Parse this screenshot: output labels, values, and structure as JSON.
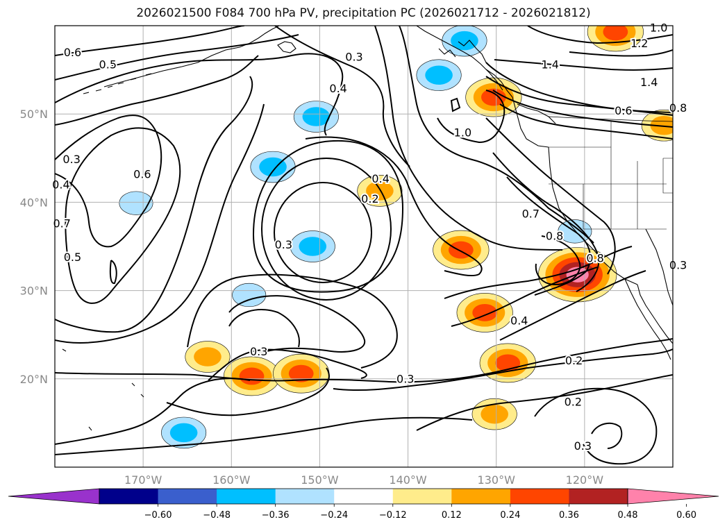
{
  "title": "2026021500 F084 700 hPa PV, precipitation PC (2026021712 - 2026021812)",
  "chart_data": {
    "type": "contour-map",
    "title": "2026021500 F084 700 hPa PV, precipitation PC (2026021712 - 2026021812)",
    "lon_range": [
      -180,
      -110
    ],
    "lat_range": [
      10,
      60
    ],
    "x_ticks": [
      {
        "value": -170,
        "label": "170°W"
      },
      {
        "value": -160,
        "label": "160°W"
      },
      {
        "value": -150,
        "label": "150°W"
      },
      {
        "value": -140,
        "label": "140°W"
      },
      {
        "value": -130,
        "label": "130°W"
      },
      {
        "value": -120,
        "label": "120°W"
      }
    ],
    "y_ticks": [
      {
        "value": 20,
        "label": "20°N"
      },
      {
        "value": 30,
        "label": "30°N"
      },
      {
        "value": 40,
        "label": "40°N"
      },
      {
        "value": 50,
        "label": "50°N"
      }
    ],
    "grid": true,
    "contour_labels": [
      {
        "text": "0.6",
        "lon": -178.0,
        "lat": 56.9
      },
      {
        "text": "0.5",
        "lon": -174.0,
        "lat": 55.5
      },
      {
        "text": "0.3",
        "lon": -146.1,
        "lat": 56.4
      },
      {
        "text": "0.4",
        "lon": -147.9,
        "lat": 52.8
      },
      {
        "text": "0.3",
        "lon": -178.1,
        "lat": 44.8
      },
      {
        "text": "0.4",
        "lon": -179.3,
        "lat": 41.9
      },
      {
        "text": "0.6",
        "lon": -170.1,
        "lat": 43.1
      },
      {
        "text": "0.7",
        "lon": -179.2,
        "lat": 37.5
      },
      {
        "text": "0.5",
        "lon": -178.0,
        "lat": 33.7
      },
      {
        "text": "0.3",
        "lon": -154.1,
        "lat": 35.1
      },
      {
        "text": "0.4",
        "lon": -143.1,
        "lat": 42.6
      },
      {
        "text": "0.2",
        "lon": -144.3,
        "lat": 40.3
      },
      {
        "text": "1.0",
        "lon": -133.8,
        "lat": 47.8
      },
      {
        "text": "1.4",
        "lon": -123.9,
        "lat": 55.5
      },
      {
        "text": "1.0",
        "lon": -111.6,
        "lat": 59.7
      },
      {
        "text": "1.2",
        "lon": -113.8,
        "lat": 57.9
      },
      {
        "text": "1.4",
        "lon": -112.7,
        "lat": 53.5
      },
      {
        "text": "0.6",
        "lon": -115.6,
        "lat": 50.3
      },
      {
        "text": "0.8",
        "lon": -109.4,
        "lat": 50.6
      },
      {
        "text": "0.7",
        "lon": -126.1,
        "lat": 38.6
      },
      {
        "text": "0.8",
        "lon": -123.4,
        "lat": 36.1
      },
      {
        "text": "0.8",
        "lon": -118.8,
        "lat": 33.6
      },
      {
        "text": "0.3",
        "lon": -109.4,
        "lat": 32.8
      },
      {
        "text": "0.4",
        "lon": -127.4,
        "lat": 26.5
      },
      {
        "text": "0.3",
        "lon": -156.9,
        "lat": 23.0
      },
      {
        "text": "0.3",
        "lon": -140.3,
        "lat": 19.9
      },
      {
        "text": "0.2",
        "lon": -121.2,
        "lat": 22.0
      },
      {
        "text": "0.2",
        "lon": -121.3,
        "lat": 17.3
      },
      {
        "text": "0.3",
        "lon": -120.2,
        "lat": 12.3
      }
    ],
    "colorbar": {
      "colors": [
        "#9932CC",
        "#00008B",
        "#3A5FCD",
        "#00BFFF",
        "#B0E2FF",
        "#FFFFFF",
        "#FFEC8B",
        "#FFA500",
        "#FF4500",
        "#B22222",
        "#FF82AB"
      ],
      "tick_labels": [
        "−0.60",
        "−0.48",
        "−0.36",
        "−0.24",
        "−0.12",
        "0.12",
        "0.24",
        "0.36",
        "0.48",
        "0.60"
      ],
      "tick_values": [
        -0.6,
        -0.48,
        -0.36,
        -0.24,
        -0.12,
        0.12,
        0.24,
        0.36,
        0.48,
        0.6
      ],
      "extend": "both"
    },
    "precip_blobs": [
      {
        "sign": "pos",
        "lon": -130.3,
        "lat": 51.9,
        "level": 3
      },
      {
        "sign": "pos",
        "lon": -143.2,
        "lat": 41.3,
        "level": 2
      },
      {
        "sign": "pos",
        "lon": -134.0,
        "lat": 34.6,
        "level": 3
      },
      {
        "sign": "pos",
        "lon": -120.8,
        "lat": 31.8,
        "level": 5
      },
      {
        "sign": "pos",
        "lon": -131.3,
        "lat": 27.5,
        "level": 3
      },
      {
        "sign": "pos",
        "lon": -128.7,
        "lat": 21.8,
        "level": 3
      },
      {
        "sign": "pos",
        "lon": -130.2,
        "lat": 16.0,
        "level": 2
      },
      {
        "sign": "pos",
        "lon": -157.7,
        "lat": 20.3,
        "level": 3
      },
      {
        "sign": "pos",
        "lon": -152.1,
        "lat": 20.6,
        "level": 3
      },
      {
        "sign": "pos",
        "lon": -162.7,
        "lat": 22.5,
        "level": 2
      },
      {
        "sign": "pos",
        "lon": -116.5,
        "lat": 59.3,
        "level": 3
      },
      {
        "sign": "pos",
        "lon": -111.0,
        "lat": 48.7,
        "level": 2
      },
      {
        "sign": "neg",
        "lon": -150.4,
        "lat": 49.7,
        "level": 2
      },
      {
        "sign": "neg",
        "lon": -133.6,
        "lat": 58.3,
        "level": 2
      },
      {
        "sign": "neg",
        "lon": -136.5,
        "lat": 54.4,
        "level": 2
      },
      {
        "sign": "neg",
        "lon": -155.3,
        "lat": 44.0,
        "level": 2
      },
      {
        "sign": "neg",
        "lon": -150.8,
        "lat": 35.0,
        "level": 2
      },
      {
        "sign": "neg",
        "lon": -170.8,
        "lat": 39.9,
        "level": 1
      },
      {
        "sign": "neg",
        "lon": -165.4,
        "lat": 13.9,
        "level": 2
      },
      {
        "sign": "neg",
        "lon": -158.0,
        "lat": 29.5,
        "level": 1
      },
      {
        "sign": "neg",
        "lon": -121.1,
        "lat": 36.7,
        "level": 1
      }
    ]
  }
}
